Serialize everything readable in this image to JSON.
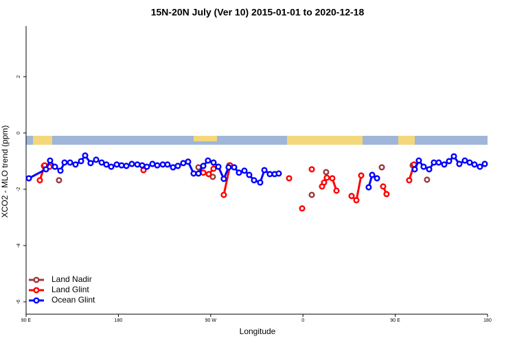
{
  "chart_data": {
    "type": "line",
    "title": "15N-20N July (Ver 10)   2015-01-01 to 2020-12-18",
    "x_label": "Longitude",
    "y_label": "XCO2 - MLO trend (ppm)",
    "xlim": [
      90,
      540
    ],
    "xticks": [
      {
        "value": 90,
        "label": "90 E"
      },
      {
        "value": 180,
        "label": "180"
      },
      {
        "value": 270,
        "label": "90 W"
      },
      {
        "value": 360,
        "label": "0"
      },
      {
        "value": 450,
        "label": "90 E"
      },
      {
        "value": 540,
        "label": "180"
      }
    ],
    "ylim": [
      -6.44,
      3.8
    ],
    "yticks": [
      -6,
      -4,
      -2,
      0,
      2
    ],
    "legend": "bottom-left",
    "series": [
      {
        "name": "Land Nadir",
        "color": "#9b3b3b",
        "x": [
          107.4,
          null,
          122.1,
          null,
          258.1,
          null,
          272.1,
          null,
          288.2,
          null,
          368.6,
          null,
          382.6,
          null,
          436.9,
          null,
          467.0,
          null,
          481.0
        ],
        "values": [
          -1.17,
          null,
          -1.68,
          null,
          -1.22,
          null,
          -1.56,
          null,
          -1.15,
          null,
          -2.2,
          null,
          -1.39,
          null,
          -1.22,
          null,
          -1.15,
          null,
          -1.66
        ]
      },
      {
        "name": "Land Glint",
        "color": "#ff0000",
        "x": [
          103.4,
          108.1,
          112.8,
          null,
          204.5,
          null,
          262.8,
          268.1,
          272.8,
          null,
          282.8,
          288.9,
          null,
          346.5,
          null,
          359.2,
          null,
          368.6,
          null,
          378.6,
          380.6,
          383.3,
          388.6,
          392.7,
          null,
          407.4,
          412.1,
          416.8,
          null,
          438.2,
          441.5,
          null,
          463.6,
          468.3
        ],
        "values": [
          -1.68,
          -1.15,
          -1.2,
          null,
          -1.32,
          null,
          -1.41,
          -1.46,
          -1.27,
          null,
          -2.2,
          -1.15,
          null,
          -1.61,
          null,
          -2.68,
          null,
          -1.29,
          null,
          -1.9,
          -1.76,
          -1.59,
          -1.61,
          -2.05,
          null,
          -2.24,
          -2.39,
          -1.51,
          null,
          -1.9,
          -2.17,
          null,
          -1.68,
          -1.12
        ]
      },
      {
        "name": "Ocean Glint",
        "color": "#0000ff",
        "x": [
          92.7,
          109.4,
          113.4,
          118.1,
          123.5,
          127.5,
          132.9,
          138.2,
          143.6,
          147.6,
          152.9,
          158.3,
          163.7,
          168.3,
          173.0,
          178.4,
          183.1,
          187.8,
          193.1,
          198.5,
          203.2,
          207.8,
          213.2,
          217.9,
          223.3,
          227.9,
          233.3,
          238.0,
          243.3,
          248.0,
          253.4,
          258.1,
          262.8,
          267.4,
          272.8,
          277.5,
          282.8,
          287.5,
          292.9,
          297.6,
          302.9,
          307.6,
          312.3,
          318.3,
          322.4,
          327.7,
          332.4,
          336.4,
          null,
          424.1,
          427.5,
          432.2,
          null,
          469.0,
          473.0,
          477.7,
          483.1,
          487.7,
          492.4,
          497.8,
          502.5,
          507.2,
          512.5,
          517.9,
          522.6,
          527.3,
          532.6,
          537.3
        ],
        "values": [
          -1.61,
          -1.29,
          -0.98,
          -1.2,
          -1.34,
          -1.05,
          -1.05,
          -1.12,
          -1.0,
          -0.8,
          -1.07,
          -0.95,
          -1.05,
          -1.12,
          -1.2,
          -1.12,
          -1.15,
          -1.17,
          -1.1,
          -1.12,
          -1.15,
          -1.2,
          -1.1,
          -1.15,
          -1.12,
          -1.12,
          -1.22,
          -1.17,
          -1.07,
          -1.02,
          -1.44,
          -1.44,
          -1.17,
          -0.98,
          -1.05,
          -1.2,
          -1.63,
          -1.22,
          -1.22,
          -1.41,
          -1.34,
          -1.49,
          -1.68,
          -1.76,
          -1.32,
          -1.46,
          -1.46,
          -1.44,
          null,
          -1.93,
          -1.49,
          -1.61,
          null,
          -1.29,
          -0.98,
          -1.2,
          -1.29,
          -1.05,
          -1.05,
          -1.12,
          -1.0,
          -0.83,
          -1.1,
          -0.98,
          -1.05,
          -1.12,
          -1.2,
          -1.1
        ]
      }
    ]
  }
}
